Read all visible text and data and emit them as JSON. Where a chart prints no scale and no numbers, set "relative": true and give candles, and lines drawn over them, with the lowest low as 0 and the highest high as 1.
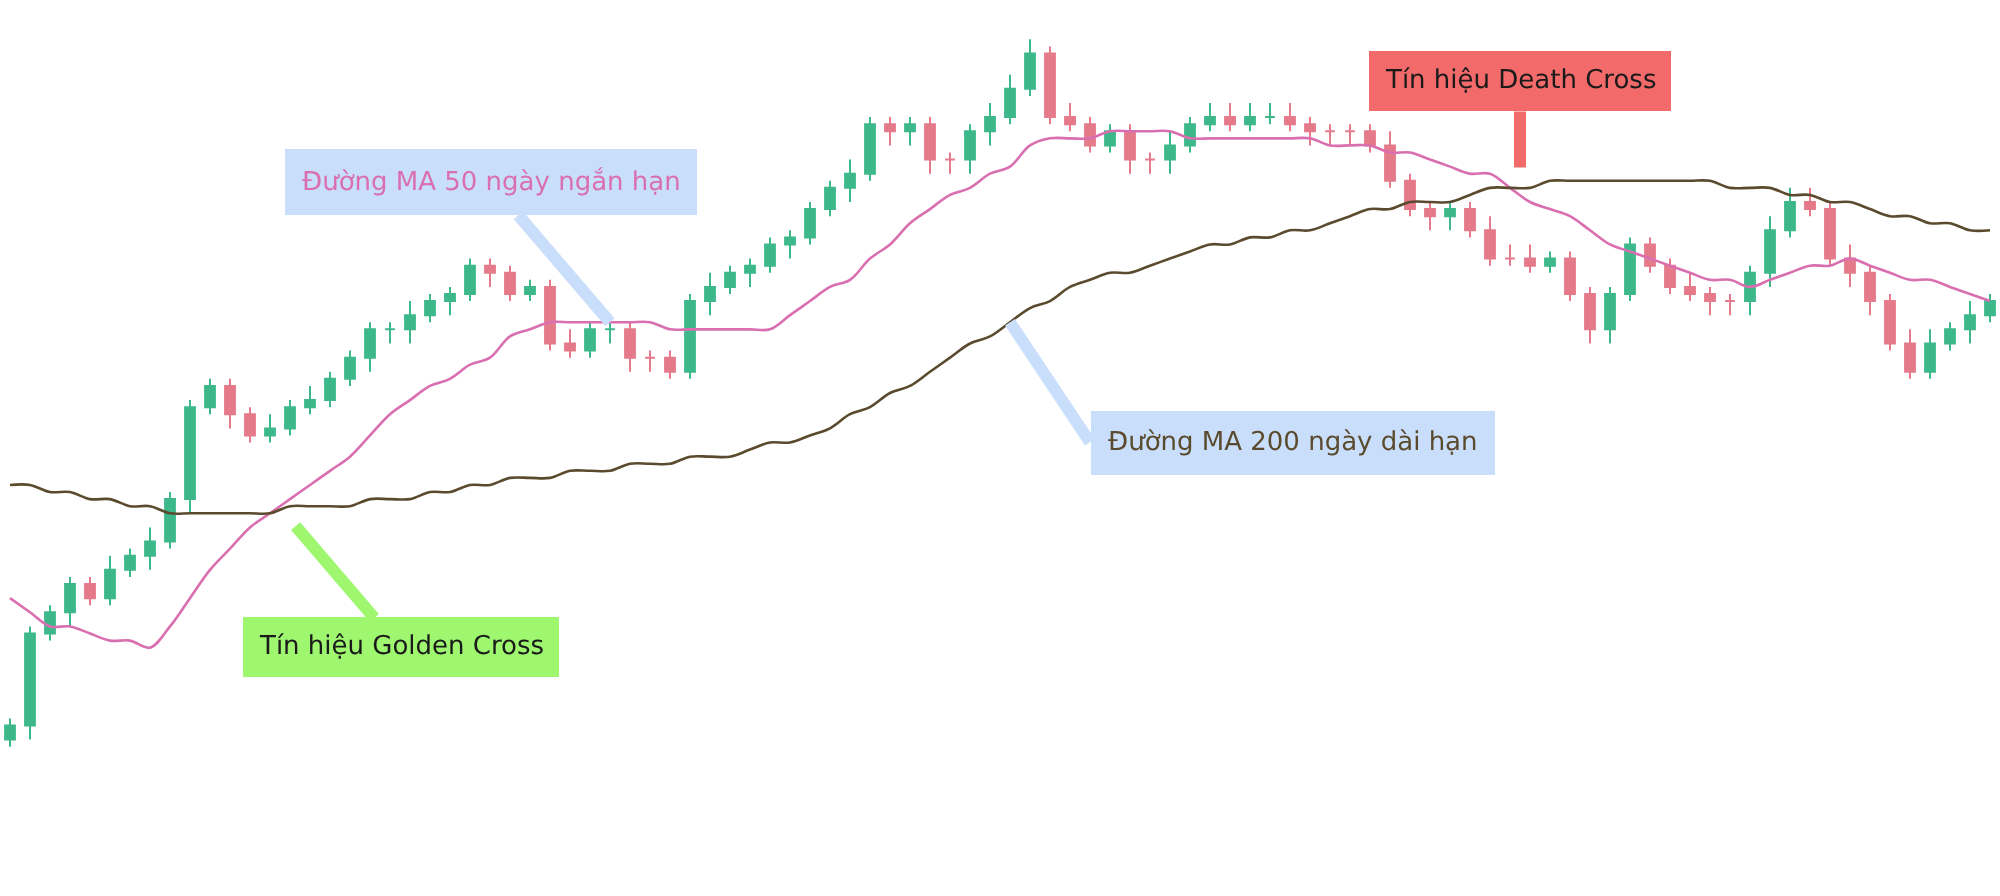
{
  "chart_data": {
    "type": "candlestick",
    "relative": true,
    "legend": false,
    "categories": [
      null,
      null,
      null,
      null,
      null,
      null,
      null,
      null,
      null,
      null,
      null,
      null,
      null,
      null,
      null,
      null,
      null,
      null,
      null,
      null,
      null,
      null,
      null,
      null,
      null,
      null,
      null,
      null,
      null,
      null,
      null,
      null,
      null,
      null,
      null,
      null,
      null,
      null,
      null,
      null,
      null,
      null,
      null,
      null,
      null,
      null,
      null,
      null,
      null,
      null,
      null,
      null,
      null,
      null,
      null,
      null,
      null,
      null,
      null,
      null,
      null,
      null,
      null,
      null,
      null,
      null,
      null,
      null,
      null,
      null,
      null,
      null,
      null,
      null,
      null,
      null,
      null,
      null,
      null,
      null,
      null,
      null,
      null,
      null,
      null,
      null,
      null,
      null,
      null,
      null,
      null,
      null,
      null,
      null,
      null,
      null,
      null,
      null,
      null,
      null
    ],
    "ohlc": [
      [
        0.01,
        0.04,
        0,
        0.03
      ],
      [
        0.03,
        0.17,
        0.01,
        0.16
      ],
      [
        0.16,
        0.2,
        0.15,
        0.19
      ],
      [
        0.19,
        0.24,
        0.17,
        0.23
      ],
      [
        0.23,
        0.24,
        0.2,
        0.21
      ],
      [
        0.21,
        0.27,
        0.2,
        0.25
      ],
      [
        0.25,
        0.28,
        0.24,
        0.27
      ],
      [
        0.27,
        0.31,
        0.25,
        0.29
      ],
      [
        0.29,
        0.36,
        0.28,
        0.35
      ],
      [
        0.35,
        0.49,
        0.33,
        0.48
      ],
      [
        0.48,
        0.52,
        0.47,
        0.51
      ],
      [
        0.51,
        0.52,
        0.45,
        0.47
      ],
      [
        0.47,
        0.48,
        0.43,
        0.44
      ],
      [
        0.44,
        0.47,
        0.43,
        0.45
      ],
      [
        0.45,
        0.49,
        0.44,
        0.48
      ],
      [
        0.48,
        0.51,
        0.47,
        0.49
      ],
      [
        0.49,
        0.53,
        0.48,
        0.52
      ],
      [
        0.52,
        0.56,
        0.51,
        0.55
      ],
      [
        0.55,
        0.6,
        0.53,
        0.59
      ],
      [
        0.59,
        0.6,
        0.57,
        0.59
      ],
      [
        0.59,
        0.63,
        0.57,
        0.61
      ],
      [
        0.61,
        0.64,
        0.6,
        0.63
      ],
      [
        0.63,
        0.65,
        0.61,
        0.64
      ],
      [
        0.64,
        0.69,
        0.63,
        0.68
      ],
      [
        0.68,
        0.69,
        0.65,
        0.67
      ],
      [
        0.67,
        0.68,
        0.63,
        0.64
      ],
      [
        0.64,
        0.66,
        0.63,
        0.65
      ],
      [
        0.65,
        0.66,
        0.56,
        0.57
      ],
      [
        0.57,
        0.59,
        0.55,
        0.56
      ],
      [
        0.56,
        0.6,
        0.55,
        0.59
      ],
      [
        0.59,
        0.6,
        0.57,
        0.59
      ],
      [
        0.59,
        0.6,
        0.53,
        0.55
      ],
      [
        0.55,
        0.56,
        0.53,
        0.55
      ],
      [
        0.55,
        0.56,
        0.52,
        0.53
      ],
      [
        0.53,
        0.64,
        0.52,
        0.63
      ],
      [
        0.63,
        0.67,
        0.61,
        0.65
      ],
      [
        0.65,
        0.68,
        0.64,
        0.67
      ],
      [
        0.67,
        0.69,
        0.65,
        0.68
      ],
      [
        0.68,
        0.72,
        0.67,
        0.71
      ],
      [
        0.71,
        0.73,
        0.69,
        0.72
      ],
      [
        0.72,
        0.77,
        0.71,
        0.76
      ],
      [
        0.76,
        0.8,
        0.75,
        0.79
      ],
      [
        0.79,
        0.83,
        0.77,
        0.81
      ],
      [
        0.81,
        0.89,
        0.8,
        0.88
      ],
      [
        0.88,
        0.89,
        0.85,
        0.87
      ],
      [
        0.87,
        0.89,
        0.85,
        0.88
      ],
      [
        0.88,
        0.89,
        0.81,
        0.83
      ],
      [
        0.83,
        0.84,
        0.81,
        0.83
      ],
      [
        0.83,
        0.88,
        0.81,
        0.87
      ],
      [
        0.87,
        0.91,
        0.85,
        0.89
      ],
      [
        0.89,
        0.95,
        0.88,
        0.93
      ],
      [
        0.93,
        1,
        0.92,
        0.98
      ],
      [
        0.98,
        0.99,
        0.88,
        0.89
      ],
      [
        0.89,
        0.91,
        0.87,
        0.88
      ],
      [
        0.88,
        0.89,
        0.84,
        0.85
      ],
      [
        0.85,
        0.88,
        0.84,
        0.87
      ],
      [
        0.87,
        0.88,
        0.81,
        0.83
      ],
      [
        0.83,
        0.84,
        0.81,
        0.83
      ],
      [
        0.83,
        0.87,
        0.81,
        0.85
      ],
      [
        0.85,
        0.89,
        0.84,
        0.88
      ],
      [
        0.88,
        0.91,
        0.87,
        0.89
      ],
      [
        0.89,
        0.91,
        0.87,
        0.88
      ],
      [
        0.88,
        0.91,
        0.87,
        0.89
      ],
      [
        0.89,
        0.91,
        0.88,
        0.89
      ],
      [
        0.89,
        0.91,
        0.87,
        0.88
      ],
      [
        0.88,
        0.89,
        0.85,
        0.87
      ],
      [
        0.87,
        0.88,
        0.85,
        0.87
      ],
      [
        0.87,
        0.88,
        0.85,
        0.87
      ],
      [
        0.87,
        0.88,
        0.84,
        0.85
      ],
      [
        0.85,
        0.87,
        0.79,
        0.8
      ],
      [
        0.8,
        0.81,
        0.75,
        0.76
      ],
      [
        0.76,
        0.77,
        0.73,
        0.75
      ],
      [
        0.75,
        0.77,
        0.73,
        0.76
      ],
      [
        0.76,
        0.77,
        0.72,
        0.73
      ],
      [
        0.73,
        0.75,
        0.68,
        0.69
      ],
      [
        0.69,
        0.71,
        0.68,
        0.69
      ],
      [
        0.69,
        0.71,
        0.67,
        0.68
      ],
      [
        0.68,
        0.7,
        0.67,
        0.69
      ],
      [
        0.69,
        0.7,
        0.63,
        0.64
      ],
      [
        0.64,
        0.65,
        0.57,
        0.59
      ],
      [
        0.59,
        0.65,
        0.57,
        0.64
      ],
      [
        0.64,
        0.72,
        0.63,
        0.71
      ],
      [
        0.71,
        0.72,
        0.67,
        0.68
      ],
      [
        0.68,
        0.69,
        0.64,
        0.65
      ],
      [
        0.65,
        0.67,
        0.63,
        0.64
      ],
      [
        0.64,
        0.65,
        0.61,
        0.63
      ],
      [
        0.63,
        0.64,
        0.61,
        0.63
      ],
      [
        0.63,
        0.68,
        0.61,
        0.67
      ],
      [
        0.67,
        0.75,
        0.65,
        0.73
      ],
      [
        0.73,
        0.79,
        0.72,
        0.77
      ],
      [
        0.77,
        0.79,
        0.75,
        0.76
      ],
      [
        0.76,
        0.77,
        0.68,
        0.69
      ],
      [
        0.69,
        0.71,
        0.65,
        0.67
      ],
      [
        0.67,
        0.68,
        0.61,
        0.63
      ],
      [
        0.63,
        0.64,
        0.56,
        0.57
      ],
      [
        0.57,
        0.59,
        0.52,
        0.53
      ],
      [
        0.53,
        0.59,
        0.52,
        0.57
      ],
      [
        0.57,
        0.6,
        0.56,
        0.59
      ],
      [
        0.59,
        0.63,
        0.57,
        0.61
      ],
      [
        0.61,
        0.64,
        0.6,
        0.63
      ]
    ],
    "series": [
      {
        "type": "line",
        "name": "Đường MA 50 ngày ngắn hạn",
        "color": "#d96fb0",
        "values": [
          0.21,
          0.19,
          0.17,
          0.17,
          0.16,
          0.15,
          0.15,
          0.14,
          0.17,
          0.21,
          0.25,
          0.28,
          0.31,
          0.33,
          0.35,
          0.37,
          0.39,
          0.41,
          0.44,
          0.47,
          0.49,
          0.51,
          0.52,
          0.54,
          0.55,
          0.58,
          0.59,
          0.6,
          0.6,
          0.6,
          0.6,
          0.6,
          0.6,
          0.59,
          0.59,
          0.59,
          0.59,
          0.59,
          0.59,
          0.61,
          0.63,
          0.65,
          0.66,
          0.69,
          0.71,
          0.74,
          0.76,
          0.78,
          0.79,
          0.81,
          0.82,
          0.85,
          0.86,
          0.86,
          0.86,
          0.87,
          0.87,
          0.87,
          0.87,
          0.86,
          0.86,
          0.86,
          0.86,
          0.86,
          0.86,
          0.86,
          0.85,
          0.85,
          0.85,
          0.84,
          0.84,
          0.83,
          0.82,
          0.81,
          0.81,
          0.79,
          0.77,
          0.76,
          0.75,
          0.73,
          0.71,
          0.7,
          0.69,
          0.68,
          0.67,
          0.66,
          0.66,
          0.65,
          0.66,
          0.67,
          0.68,
          0.68,
          0.69,
          0.68,
          0.67,
          0.66,
          0.66,
          0.65,
          0.64,
          0.63
        ]
      },
      {
        "type": "line",
        "name": "Đường MA 200 ngày dài hạn",
        "color": "#5b4b2e",
        "values": [
          0.37,
          0.37,
          0.36,
          0.36,
          0.35,
          0.35,
          0.34,
          0.34,
          0.33,
          0.33,
          0.33,
          0.33,
          0.33,
          0.33,
          0.34,
          0.34,
          0.34,
          0.34,
          0.35,
          0.35,
          0.35,
          0.36,
          0.36,
          0.37,
          0.37,
          0.38,
          0.38,
          0.38,
          0.39,
          0.39,
          0.39,
          0.4,
          0.4,
          0.4,
          0.41,
          0.41,
          0.41,
          0.42,
          0.43,
          0.43,
          0.44,
          0.45,
          0.47,
          0.48,
          0.5,
          0.51,
          0.53,
          0.55,
          0.57,
          0.58,
          0.6,
          0.62,
          0.63,
          0.65,
          0.66,
          0.67,
          0.67,
          0.68,
          0.69,
          0.7,
          0.71,
          0.71,
          0.72,
          0.72,
          0.73,
          0.73,
          0.74,
          0.75,
          0.76,
          0.76,
          0.77,
          0.77,
          0.77,
          0.78,
          0.79,
          0.79,
          0.79,
          0.8,
          0.8,
          0.8,
          0.8,
          0.8,
          0.8,
          0.8,
          0.8,
          0.8,
          0.79,
          0.79,
          0.79,
          0.78,
          0.78,
          0.77,
          0.77,
          0.76,
          0.75,
          0.75,
          0.74,
          0.74,
          0.73,
          0.73
        ]
      }
    ],
    "annotations": [
      "Tín hiệu Golden Cross",
      "Tín hiệu Death Cross"
    ]
  }
}
